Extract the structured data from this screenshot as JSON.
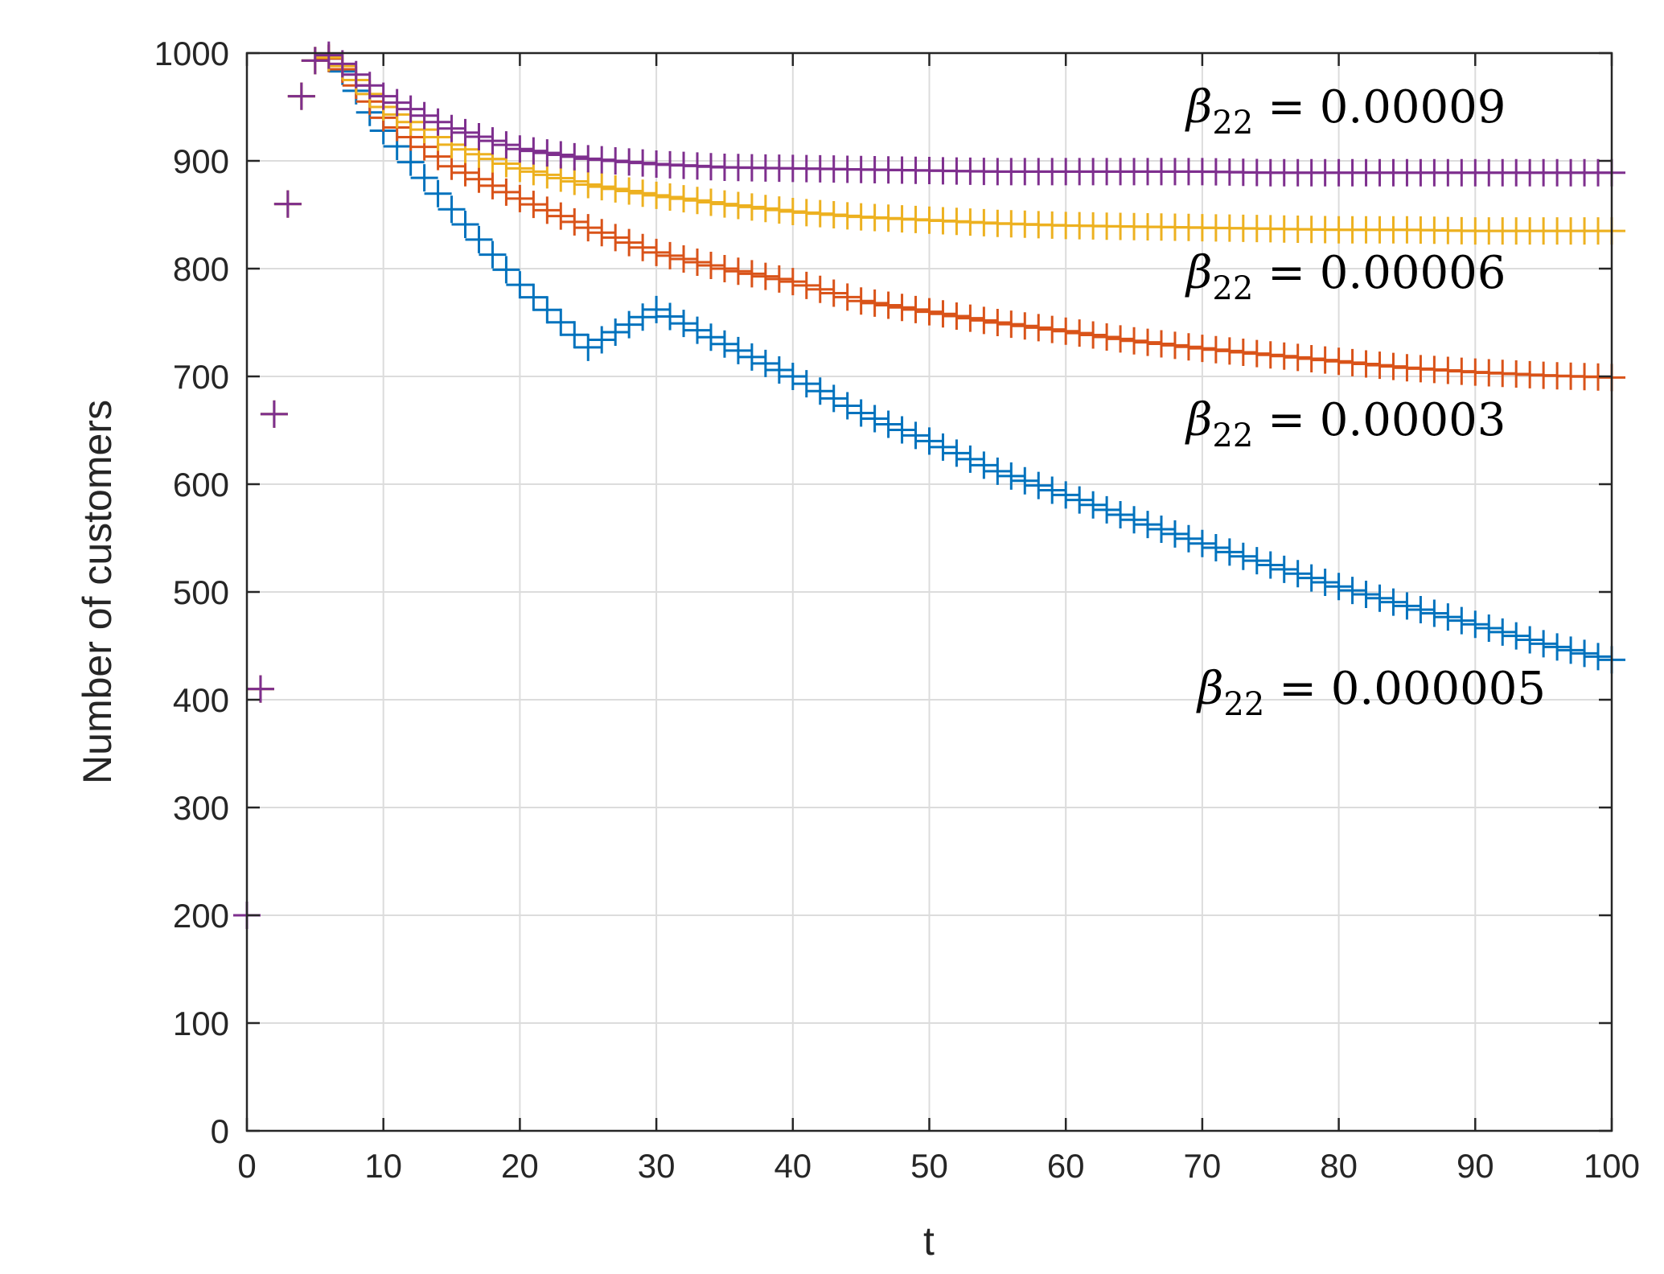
{
  "chart_data": {
    "type": "scatter",
    "marker": "plus",
    "title": "",
    "xlabel": "t",
    "ylabel": "Number of customers",
    "xlim": [
      0,
      100
    ],
    "ylim": [
      0,
      1000
    ],
    "xticks": [
      "0",
      "10",
      "20",
      "30",
      "40",
      "50",
      "60",
      "70",
      "80",
      "90",
      "100"
    ],
    "yticks": [
      "0",
      "100",
      "200",
      "300",
      "400",
      "500",
      "600",
      "700",
      "800",
      "900",
      "1000"
    ],
    "grid": true,
    "series": [
      {
        "name": "β22 = 0.000005",
        "color": "#0072BD",
        "anchors_t": [
          0,
          1,
          2,
          3,
          4,
          5,
          6,
          7,
          8,
          9,
          10,
          15,
          20,
          25,
          30,
          35,
          40,
          45,
          50,
          55,
          60,
          65,
          70,
          75,
          80,
          85,
          90,
          95,
          100
        ],
        "anchors_y": [
          200,
          410,
          665,
          860,
          960,
          993,
          995,
          983,
          965,
          945,
          928,
          855,
          785,
          727,
          762,
          730,
          700,
          666,
          640,
          612,
          590,
          567,
          545,
          525,
          505,
          487,
          470,
          452,
          437
        ]
      },
      {
        "name": "β22 = 0.00003",
        "color": "#D95319",
        "anchors_t": [
          0,
          1,
          2,
          3,
          4,
          5,
          6,
          7,
          8,
          9,
          10,
          15,
          20,
          25,
          30,
          35,
          40,
          45,
          50,
          55,
          60,
          65,
          70,
          75,
          80,
          85,
          90,
          95,
          100
        ],
        "anchors_y": [
          200,
          410,
          665,
          860,
          960,
          993,
          995,
          985,
          970,
          955,
          940,
          895,
          865,
          838,
          815,
          800,
          788,
          770,
          760,
          750,
          742,
          733,
          726,
          720,
          714,
          708,
          704,
          701,
          699
        ]
      },
      {
        "name": "β22 = 0.00006",
        "color": "#EDB120",
        "anchors_t": [
          0,
          1,
          2,
          3,
          4,
          5,
          6,
          7,
          8,
          9,
          10,
          15,
          20,
          25,
          30,
          35,
          40,
          45,
          50,
          55,
          60,
          65,
          70,
          75,
          80,
          85,
          90,
          95,
          100
        ],
        "anchors_y": [
          200,
          410,
          665,
          860,
          960,
          993,
          996,
          988,
          975,
          962,
          950,
          915,
          893,
          878,
          868,
          860,
          853,
          848,
          845,
          842,
          840,
          839,
          838,
          837,
          836,
          836,
          835,
          835,
          835
        ]
      },
      {
        "name": "β22 = 0.00009",
        "color": "#7E2F8E",
        "anchors_t": [
          0,
          1,
          2,
          3,
          4,
          5,
          6,
          7,
          8,
          9,
          10,
          15,
          20,
          25,
          30,
          35,
          40,
          45,
          50,
          55,
          60,
          65,
          70,
          75,
          80,
          85,
          90,
          95,
          100
        ],
        "anchors_y": [
          200,
          410,
          665,
          860,
          960,
          993,
          998,
          990,
          980,
          970,
          960,
          930,
          911,
          902,
          897,
          894,
          893,
          892,
          891,
          890,
          890,
          890,
          890,
          889,
          889,
          889,
          889,
          889,
          889
        ]
      }
    ],
    "annotations": [
      {
        "beta": "β",
        "sub": "22",
        "rest": " = 0.00009",
        "series": 3
      },
      {
        "beta": "β",
        "sub": "22",
        "rest": " = 0.00006",
        "series": 2
      },
      {
        "beta": "β",
        "sub": "22",
        "rest": " = 0.00003",
        "series": 1
      },
      {
        "beta": "β",
        "sub": "22",
        "rest": " = 0.000005",
        "series": 0
      }
    ]
  }
}
